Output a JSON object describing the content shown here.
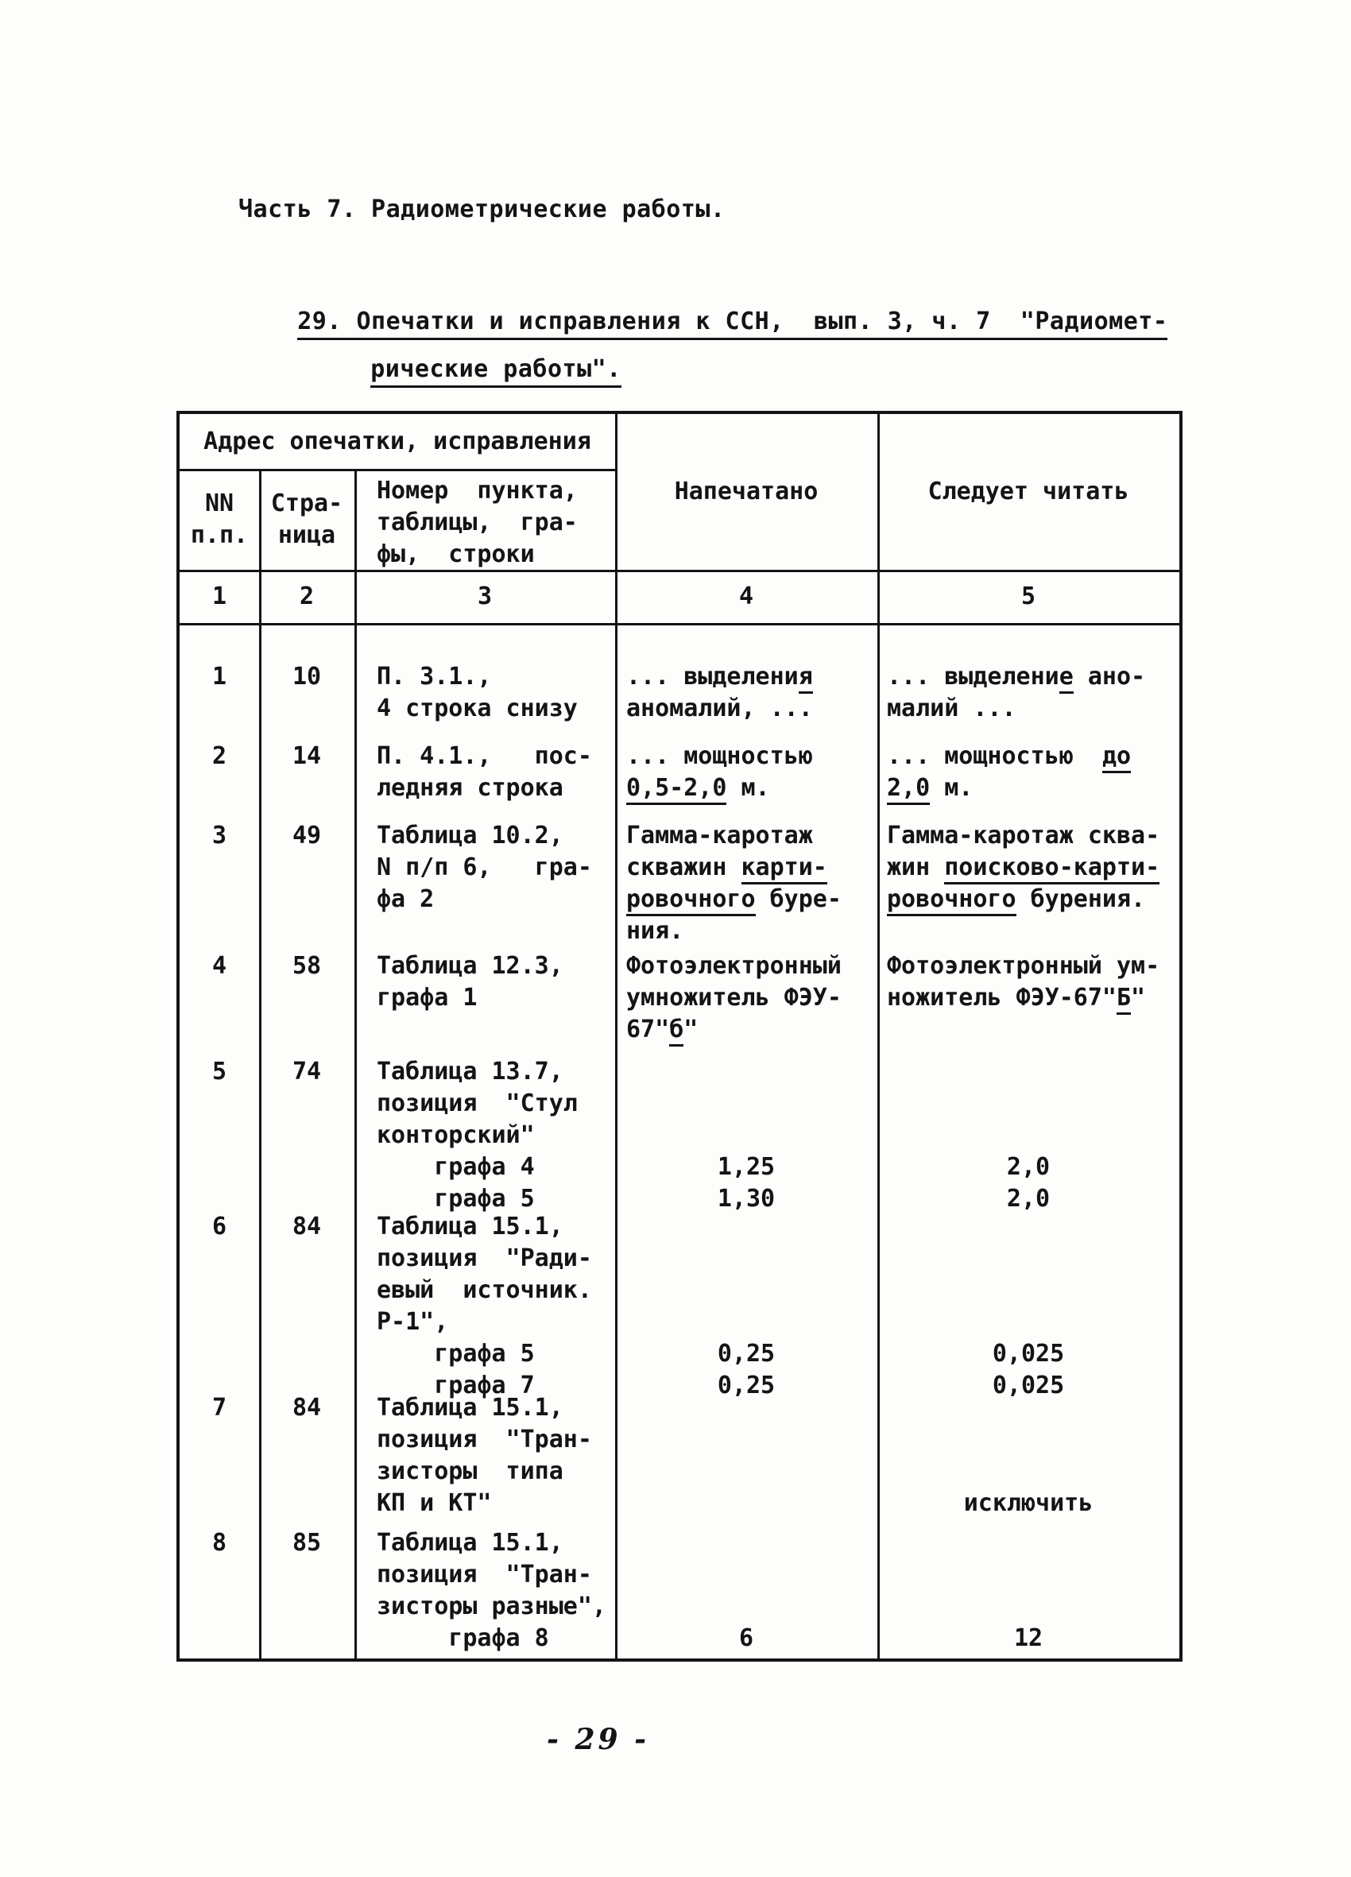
{
  "page": {
    "title": "Часть 7. Радиометрические работы.",
    "heading_line1": "29. Опечатки и исправления к ССН,  вып. 3, ч. 7  \"Радиомет-",
    "heading_line2": "рические работы\".",
    "page_number": "- 29 -"
  },
  "table": {
    "merged_header": "Адрес опечатки, исправления",
    "col_headers": {
      "num": [
        "NN",
        "п.п."
      ],
      "page": [
        "Стра-",
        "ница"
      ],
      "address": [
        "Номер  пункта,",
        "таблицы,  гра-",
        "фы,  строки"
      ],
      "printed": "Напечатано",
      "correct": "Следует читать"
    },
    "col_numbers": [
      "1",
      "2",
      "3",
      "4",
      "5"
    ],
    "rows": [
      {
        "n": "1",
        "page": "10",
        "address": [
          "П. 3.1.,",
          "4 строка снизу"
        ],
        "printed": [
          [
            {
              "t": "... выделени"
            },
            {
              "t": "я",
              "u": true
            }
          ],
          "аномалий, ..."
        ],
        "correct": [
          [
            {
              "t": "... выделени"
            },
            {
              "t": "е",
              "u": true
            },
            {
              "t": " ано-"
            }
          ],
          "малий ..."
        ]
      },
      {
        "n": "2",
        "page": "14",
        "address": [
          "П. 4.1.,   пос-",
          "ледняя строка"
        ],
        "printed": [
          "... мощностью",
          [
            {
              "t": "0,5-2,0",
              "u": true
            },
            {
              "t": " м."
            }
          ]
        ],
        "correct": [
          [
            {
              "t": "... мощностью  "
            },
            {
              "t": "до",
              "u": true
            }
          ],
          [
            {
              "t": "2,0",
              "u": true
            },
            {
              "t": " м."
            }
          ]
        ]
      },
      {
        "n": "3",
        "page": "49",
        "address": [
          "Таблица 10.2,",
          "N п/п 6,   гра-",
          "фа 2"
        ],
        "printed": [
          "Гамма-каротаж",
          [
            {
              "t": "скважин "
            },
            {
              "t": "карти-",
              "u": true
            }
          ],
          [
            {
              "t": "ровочного",
              "u": true
            },
            {
              "t": " буре-"
            }
          ],
          "ния."
        ],
        "correct": [
          "Гамма-каротаж сква-",
          [
            {
              "t": "жин "
            },
            {
              "t": "поисково-карти-",
              "u": true
            }
          ],
          [
            {
              "t": "ровочного",
              "u": true
            },
            {
              "t": " бурения."
            }
          ]
        ]
      },
      {
        "n": "4",
        "page": "58",
        "address": [
          "Таблица 12.3,",
          "графа 1"
        ],
        "printed": [
          "Фотоэлектронный",
          "умножитель ФЭУ-",
          [
            {
              "t": "67\""
            },
            {
              "t": "б",
              "u": true
            },
            {
              "t": "\""
            }
          ]
        ],
        "correct": [
          "Фотоэлектронный ум-",
          [
            {
              "t": "ножитель ФЭУ-67\""
            },
            {
              "t": "Б",
              "u": true
            },
            {
              "t": "\""
            }
          ]
        ]
      },
      {
        "n": "5",
        "page": "74",
        "address": [
          "Таблица 13.7,",
          "позиция  \"Стул",
          "конторский\"",
          "    графа 4",
          "    графа 5"
        ],
        "printed": [
          "",
          "",
          "",
          "1,25",
          "1,30"
        ],
        "correct": [
          "",
          "",
          "",
          "2,0",
          "2,0"
        ]
      },
      {
        "n": "6",
        "page": "84",
        "address": [
          "Таблица 15.1,",
          "позиция  \"Ради-",
          "евый  источник.",
          "Р-1\",",
          "    графа 5",
          "    графа 7"
        ],
        "printed": [
          "",
          "",
          "",
          "",
          "0,25",
          "0,25"
        ],
        "correct": [
          "",
          "",
          "",
          "",
          "0,025",
          "0,025"
        ]
      },
      {
        "n": "7",
        "page": "84",
        "address": [
          "Таблица 15.1,",
          "позиция  \"Тран-",
          "зисторы  типа",
          "КП и КТ\""
        ],
        "printed": [],
        "correct": [
          "",
          "",
          "",
          "исключить"
        ]
      },
      {
        "n": "8",
        "page": "85",
        "address": [
          "Таблица 15.1,",
          "позиция  \"Тран-",
          "зисторы разные\",",
          "     графа 8"
        ],
        "printed": [
          "",
          "",
          "",
          "6"
        ],
        "correct": [
          "",
          "",
          "",
          "12"
        ]
      }
    ]
  }
}
